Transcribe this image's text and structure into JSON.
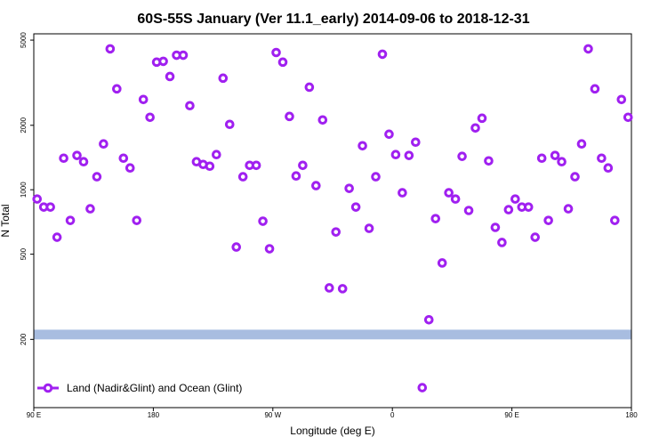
{
  "chart_data": {
    "type": "scatter",
    "title": "60S-55S January (Ver 11.1_early)   2014-09-06 to 2018-12-31",
    "xlabel": "Longitude (deg E)",
    "ylabel": "N Total",
    "xlim": [
      90,
      540
    ],
    "xticks": [
      {
        "value": 90,
        "label": "90 E"
      },
      180,
      {
        "value": 270,
        "label": "90 W"
      },
      {
        "value": 360,
        "label": "0"
      },
      {
        "value": 450,
        "label": "90 E"
      },
      {
        "value": 540,
        "label": "180"
      }
    ],
    "ylim": [
      96,
      5350
    ],
    "yticks": [
      200,
      500,
      1000,
      2000,
      5000
    ],
    "log_y": true,
    "legend": "bottom-left",
    "band": {
      "range": [
        200,
        222
      ],
      "color": "#a8bde0"
    },
    "series": [
      {
        "name": "Land (Nadir&Glint) and Ocean (Glint)",
        "color": "#a020f0",
        "x": [
          92.5,
          97.5,
          102.5,
          107.5,
          112.5,
          117.5,
          122.5,
          127.5,
          132.5,
          137.5,
          142.5,
          147.5,
          152.5,
          157.5,
          162.5,
          167.5,
          172.5,
          177.5,
          182.5,
          187.5,
          192.5,
          197.5,
          202.5,
          207.5,
          212.5,
          217.5,
          222.5,
          227.5,
          232.5,
          237.5,
          242.5,
          247.5,
          252.5,
          257.5,
          262.5,
          267.5,
          272.5,
          277.5,
          282.5,
          287.5,
          292.5,
          297.5,
          302.5,
          307.5,
          312.5,
          317.5,
          322.5,
          327.5,
          332.5,
          337.5,
          342.5,
          347.5,
          352.5,
          357.5,
          362.5,
          367.5,
          372.5,
          377.5,
          382.5,
          387.5,
          392.5,
          397.5,
          402.5,
          407.5,
          412.5,
          417.5,
          422.5,
          427.5,
          432.5,
          437.5,
          442.5,
          447.5,
          452.5,
          457.5,
          462.5,
          467.5,
          472.5,
          477.5,
          482.5,
          487.5,
          492.5,
          497.5,
          502.5,
          507.5,
          512.5,
          517.5,
          522.5,
          527.5,
          532.5,
          537.5
        ],
        "values": [
          905,
          830,
          830,
          600,
          1404,
          719,
          1446,
          1352,
          815,
          1150,
          1637,
          4550,
          2960,
          1404,
          1264,
          719,
          2640,
          2180,
          3945,
          3980,
          3380,
          4250,
          4250,
          2470,
          1352,
          1313,
          1288,
          1459,
          3320,
          2020,
          540,
          1150,
          1300,
          1300,
          713,
          530,
          4376,
          3945,
          2200,
          1160,
          1300,
          3013,
          1045,
          2118,
          348,
          635,
          345,
          1015,
          830,
          1605,
          660,
          1150,
          4296,
          1817,
          1459,
          968,
          1446,
          1668,
          119,
          247,
          733,
          455,
          968,
          905,
          1432,
          800,
          1943,
          2158,
          1364,
          667,
          567,
          807,
          905,
          830,
          830,
          600,
          1404,
          719,
          1446,
          1352,
          815,
          1150,
          1637,
          4550,
          2960,
          1404,
          1264,
          719,
          2640,
          2180
        ]
      }
    ]
  }
}
